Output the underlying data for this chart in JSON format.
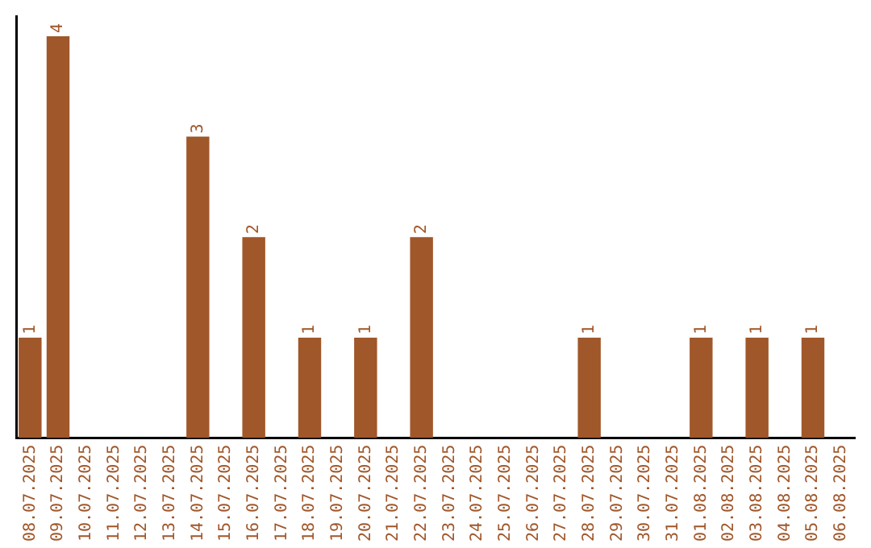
{
  "chart_data": {
    "type": "bar",
    "categories": [
      "08.07.2025",
      "09.07.2025",
      "10.07.2025",
      "11.07.2025",
      "12.07.2025",
      "13.07.2025",
      "14.07.2025",
      "15.07.2025",
      "16.07.2025",
      "17.07.2025",
      "18.07.2025",
      "19.07.2025",
      "20.07.2025",
      "21.07.2025",
      "22.07.2025",
      "23.07.2025",
      "24.07.2025",
      "25.07.2025",
      "26.07.2025",
      "27.07.2025",
      "28.07.2025",
      "29.07.2025",
      "30.07.2025",
      "31.07.2025",
      "01.08.2025",
      "02.08.2025",
      "03.08.2025",
      "04.08.2025",
      "05.08.2025",
      "06.08.2025"
    ],
    "values": [
      1,
      4,
      0,
      0,
      0,
      0,
      3,
      0,
      2,
      0,
      1,
      0,
      1,
      0,
      2,
      0,
      0,
      0,
      0,
      0,
      1,
      0,
      0,
      0,
      1,
      0,
      1,
      0,
      1,
      0
    ],
    "value_labels": [
      "1",
      "4",
      null,
      null,
      null,
      null,
      "3",
      null,
      "2",
      null,
      "1",
      null,
      "1",
      null,
      "2",
      null,
      null,
      null,
      null,
      null,
      "1",
      null,
      null,
      null,
      "1",
      null,
      "1",
      null,
      "1",
      null
    ],
    "color": "#a0572a",
    "ylim": [
      0,
      4.2
    ],
    "tick_labels": "x",
    "grid": false,
    "legend": false
  }
}
